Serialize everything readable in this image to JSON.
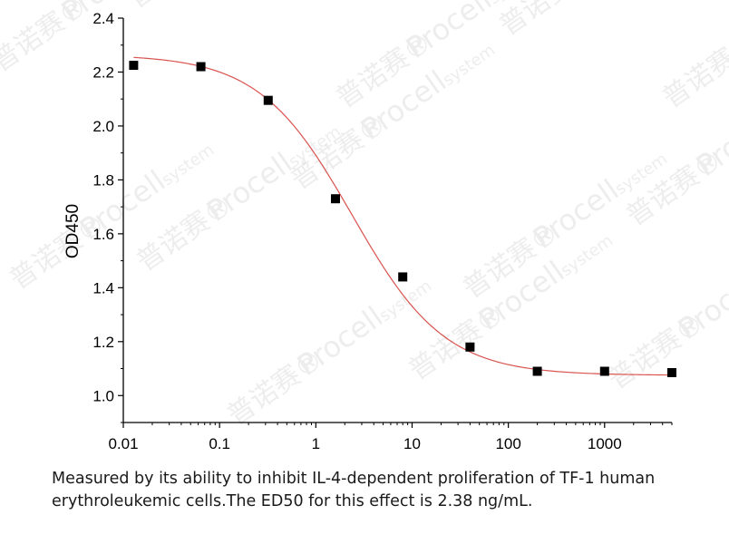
{
  "chart_data": {
    "type": "scatter",
    "x_scale": "log",
    "xlabel": "",
    "ylabel": "OD450",
    "xlim": [
      0.01,
      5000
    ],
    "ylim": [
      0.9,
      2.4
    ],
    "x_ticks": [
      0.01,
      0.1,
      1,
      10,
      100,
      1000
    ],
    "x_tick_labels": [
      "0.01",
      "0.1",
      "1",
      "10",
      "100",
      "1000"
    ],
    "y_ticks": [
      1.0,
      1.2,
      1.4,
      1.6,
      1.8,
      2.0,
      2.2,
      2.4
    ],
    "y_tick_labels": [
      "1.0",
      "1.2",
      "1.4",
      "1.6",
      "1.8",
      "2.0",
      "2.2",
      "2.4"
    ],
    "grid": false,
    "series": [
      {
        "marker": "square",
        "color": "#000000",
        "points": [
          {
            "x": 0.0128,
            "y": 2.225
          },
          {
            "x": 0.064,
            "y": 2.22
          },
          {
            "x": 0.32,
            "y": 2.095
          },
          {
            "x": 1.6,
            "y": 1.73
          },
          {
            "x": 8,
            "y": 1.44
          },
          {
            "x": 40,
            "y": 1.18
          },
          {
            "x": 200,
            "y": 1.09
          },
          {
            "x": 1000,
            "y": 1.09
          },
          {
            "x": 5000,
            "y": 1.085
          }
        ]
      }
    ],
    "fit": {
      "model": "4PL",
      "color": "#d9534f",
      "top": 2.265,
      "bottom": 1.075,
      "ec50": 2.38,
      "hill": 0.9
    }
  },
  "caption": {
    "line1": "Measured by its ability to inhibit IL-4-dependent proliferation of TF-1 human",
    "line2": "erythroleukemic cells.The ED50 for this effect is 2.38 ng/mL."
  },
  "watermark": {
    "brand": "Procell",
    "suffix": "system",
    "cn": "普诺赛®"
  }
}
